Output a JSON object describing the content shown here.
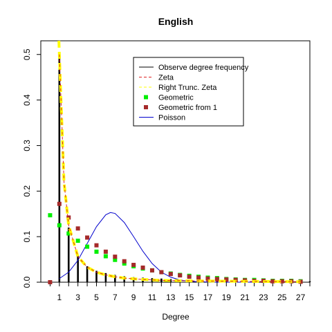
{
  "chart_data": {
    "type": "line",
    "title": "English",
    "xlabel": "Degree",
    "ylabel": "",
    "xlim": [
      -1,
      28
    ],
    "ylim": [
      0,
      0.53
    ],
    "x_ticks": [
      1,
      3,
      5,
      7,
      9,
      11,
      13,
      15,
      17,
      19,
      21,
      23,
      25,
      27
    ],
    "y_ticks": [
      0.0,
      0.1,
      0.2,
      0.3,
      0.4,
      0.5
    ],
    "legend_position": "top-right",
    "observed": {
      "name": "Observe degree frequency",
      "color": "#000000",
      "x": [
        1,
        2,
        3,
        4,
        5,
        6,
        7,
        8,
        9,
        10,
        11,
        12,
        13,
        14,
        15,
        16,
        17,
        18,
        19,
        20,
        21,
        22,
        23,
        24,
        25,
        26,
        27,
        28
      ],
      "y": [
        0.505,
        0.12,
        0.06,
        0.035,
        0.025,
        0.02,
        0.016,
        0.013,
        0.011,
        0.01,
        0.009,
        0.008,
        0.007,
        0.006,
        0.006,
        0.005,
        0.005,
        0.004,
        0.004,
        0.004,
        0.003,
        0.003,
        0.003,
        0.003,
        0.002,
        0.002,
        0.002,
        0.002
      ]
    },
    "zeta": {
      "name": "Zeta",
      "color": "#dd2222",
      "x": [
        1,
        1.5,
        2,
        3,
        4,
        5,
        6,
        7,
        8,
        10,
        12,
        15,
        20,
        27
      ],
      "y": [
        0.5,
        0.22,
        0.125,
        0.056,
        0.033,
        0.022,
        0.016,
        0.012,
        0.009,
        0.006,
        0.004,
        0.003,
        0.002,
        0.001
      ]
    },
    "right_trunc_zeta": {
      "name": "Right Trunc. Zeta",
      "color": "#ffff00",
      "x": [
        0.95,
        1,
        1.5,
        2,
        3,
        4,
        5,
        6,
        7,
        8,
        10,
        12,
        15,
        20,
        27
      ],
      "y": [
        0.53,
        0.5,
        0.22,
        0.125,
        0.056,
        0.033,
        0.022,
        0.016,
        0.012,
        0.009,
        0.006,
        0.004,
        0.003,
        0.002,
        0.001
      ]
    },
    "geometric": {
      "name": "Geometric",
      "color": "#00ee00",
      "x": [
        0,
        1,
        2,
        3,
        4,
        5,
        6,
        7,
        8,
        9,
        10,
        11,
        12,
        13,
        14,
        15,
        16,
        17,
        18,
        19,
        20,
        21,
        22,
        23,
        24,
        25,
        26,
        27
      ],
      "y": [
        0.147,
        0.125,
        0.107,
        0.091,
        0.078,
        0.067,
        0.057,
        0.049,
        0.041,
        0.035,
        0.03,
        0.026,
        0.022,
        0.019,
        0.016,
        0.014,
        0.012,
        0.01,
        0.009,
        0.007,
        0.006,
        0.005,
        0.005,
        0.004,
        0.003,
        0.003,
        0.003,
        0.002
      ]
    },
    "geometric_from_1": {
      "name": "Geometric from 1",
      "color": "#a52a2a",
      "x": [
        0,
        1,
        2,
        3,
        4,
        5,
        6,
        7,
        8,
        9,
        10,
        11,
        12,
        13,
        14,
        15,
        16,
        17,
        18,
        19,
        20,
        21,
        22,
        23,
        24,
        25,
        26,
        27
      ],
      "y": [
        0.0,
        0.172,
        0.142,
        0.118,
        0.098,
        0.081,
        0.067,
        0.056,
        0.046,
        0.038,
        0.032,
        0.026,
        0.022,
        0.018,
        0.015,
        0.012,
        0.01,
        0.008,
        0.007,
        0.006,
        0.005,
        0.004,
        0.003,
        0.003,
        0.002,
        0.002,
        0.002,
        0.001
      ]
    },
    "poisson": {
      "name": "Poisson",
      "color": "#0000cc",
      "x": [
        1,
        2,
        3,
        4,
        5,
        6,
        6.5,
        7,
        8,
        9,
        10,
        11,
        12,
        13,
        14,
        15,
        16,
        18,
        20,
        22
      ],
      "y": [
        0.008,
        0.022,
        0.048,
        0.085,
        0.122,
        0.148,
        0.153,
        0.151,
        0.131,
        0.1,
        0.068,
        0.041,
        0.022,
        0.011,
        0.005,
        0.002,
        0.001,
        0.0,
        0.0,
        0.0
      ]
    }
  }
}
